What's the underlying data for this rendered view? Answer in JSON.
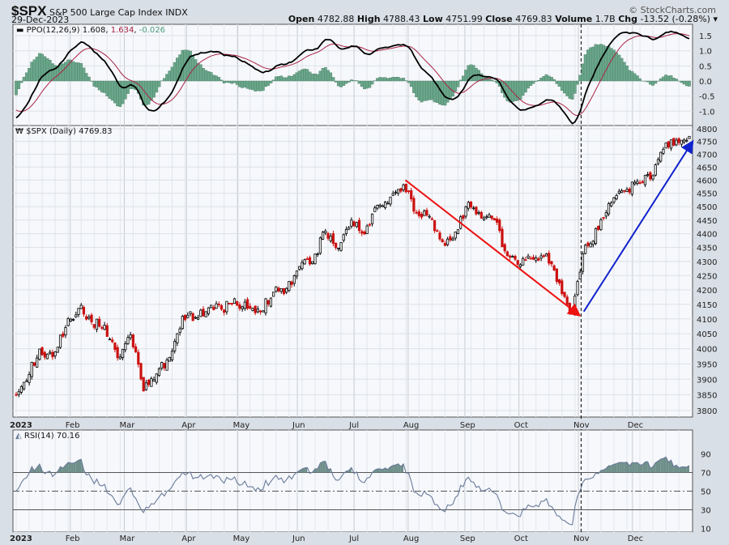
{
  "header": {
    "symbol": "$SPX",
    "name": "S&P 500 Large Cap Index",
    "exchange": "INDX",
    "date": "29-Dec-2023",
    "brand": "© StockCharts.com",
    "open_label": "Open",
    "open": "4782.88",
    "high_label": "High",
    "high": "4788.43",
    "low_label": "Low",
    "low": "4751.99",
    "close_label": "Close",
    "close": "4769.83",
    "volume_label": "Volume",
    "volume": "1.7B",
    "chg_label": "Chg",
    "chg": "-13.52 (-0.28%)"
  },
  "colors": {
    "up": "#000000",
    "down": "#cc1111",
    "ppo": "#000000",
    "signal": "#aa2244",
    "hist": "#6aa68a",
    "rsi": "#6a7a9a",
    "red_arrow": "#ee1111",
    "blue_arrow": "#1122cc"
  },
  "chart_data": [
    {
      "type": "line",
      "title": "PPO(12,26,9)",
      "legend": {
        "ppo": "PPO(12,26,9) 1.608",
        "signal": "1.634",
        "hist": "-0.026"
      },
      "yticks": [
        1.5,
        1.0,
        0.5,
        0.0,
        -0.5,
        -1.0
      ],
      "ylim": [
        -1.3,
        1.85
      ]
    },
    {
      "type": "candlestick",
      "title": "$SPX (Daily) 4769.83",
      "scale": "log",
      "ylim": [
        3760,
        4830
      ],
      "yticks": [
        4800,
        4750,
        4700,
        4650,
        4600,
        4550,
        4500,
        4450,
        4400,
        4350,
        4300,
        4250,
        4200,
        4150,
        4100,
        4050,
        4000,
        3950,
        3900,
        3850,
        3800
      ],
      "weekly_closes": [
        3895,
        3999,
        3973,
        4071,
        4136,
        4090,
        4079,
        3970,
        4046,
        3862,
        3917,
        3971,
        4109,
        4105,
        4138,
        4133,
        4169,
        4136,
        4124,
        4192,
        4205,
        4282,
        4299,
        4410,
        4348,
        4450,
        4399,
        4505,
        4536,
        4582,
        4478,
        4464,
        4370,
        4406,
        4516,
        4457,
        4450,
        4320,
        4288,
        4308,
        4327,
        4224,
        4117,
        4358,
        4415,
        4514,
        4559,
        4595,
        4604,
        4719,
        4755,
        4770
      ],
      "annotations": [
        {
          "type": "arrow",
          "color": "red",
          "from": {
            "day": 144,
            "price": 4600
          },
          "to": {
            "day": 208,
            "price": 4115
          }
        },
        {
          "type": "arrow",
          "color": "blue",
          "from": {
            "day": 210,
            "price": 4125
          },
          "to": {
            "day": 250,
            "price": 4745
          }
        },
        {
          "type": "vline",
          "style": "dashed",
          "day": 209
        }
      ]
    },
    {
      "type": "line",
      "title": "RSI(14) 70.16",
      "yticks": [
        90,
        70,
        50,
        30,
        10
      ],
      "ylim": [
        0,
        100
      ],
      "levels": [
        70,
        50,
        30
      ]
    }
  ],
  "xaxis": {
    "year": "2023",
    "months": [
      {
        "label": "Feb",
        "day": 20
      },
      {
        "label": "Mar",
        "day": 40
      },
      {
        "label": "Apr",
        "day": 63
      },
      {
        "label": "May",
        "day": 82
      },
      {
        "label": "Jun",
        "day": 104
      },
      {
        "label": "Jul",
        "day": 125
      },
      {
        "label": "Aug",
        "day": 145
      },
      {
        "label": "Sep",
        "day": 166
      },
      {
        "label": "Oct",
        "day": 186
      },
      {
        "label": "Nov",
        "day": 208
      },
      {
        "label": "Dec",
        "day": 228
      }
    ],
    "total_days": 250
  }
}
